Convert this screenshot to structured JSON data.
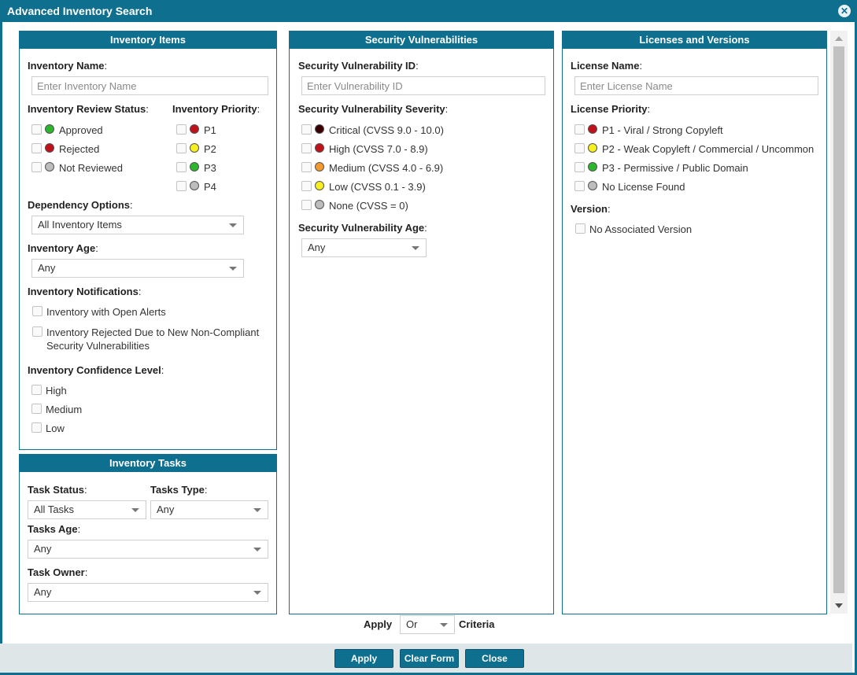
{
  "dialog": {
    "title": "Advanced Inventory Search"
  },
  "inventory_items": {
    "header": "Inventory Items",
    "name_label": "Inventory Name",
    "name_placeholder": "Enter Inventory Name",
    "review_status_label": "Inventory Review Status",
    "review_status": [
      {
        "label": "Approved",
        "color": "#2db52d"
      },
      {
        "label": "Rejected",
        "color": "#c0101a"
      },
      {
        "label": "Not Reviewed",
        "color": "#bdbdbd"
      }
    ],
    "priority_label": "Inventory Priority",
    "priorities": [
      {
        "label": "P1",
        "color": "#c0101a"
      },
      {
        "label": "P2",
        "color": "#f7f01e"
      },
      {
        "label": "P3",
        "color": "#2db52d"
      },
      {
        "label": "P4",
        "color": "#bdbdbd"
      }
    ],
    "dependency_label": "Dependency Options",
    "dependency_value": "All Inventory Items",
    "age_label": "Inventory Age",
    "age_value": "Any",
    "notifications_label": "Inventory Notifications",
    "notifications": [
      "Inventory with Open Alerts",
      "Inventory Rejected Due to New Non-Compliant",
      "Security Vulnerabilities"
    ],
    "confidence_label": "Inventory Confidence Level",
    "confidence": [
      "High",
      "Medium",
      "Low"
    ]
  },
  "inventory_tasks": {
    "header": "Inventory Tasks",
    "status_label": "Task Status",
    "status_value": "All Tasks",
    "type_label": "Tasks Type",
    "type_value": "Any",
    "age_label": "Tasks Age",
    "age_value": "Any",
    "owner_label": "Task Owner",
    "owner_value": "Any"
  },
  "security": {
    "header": "Security Vulnerabilities",
    "id_label": "Security Vulnerability ID",
    "id_placeholder": "Enter Vulnerability ID",
    "severity_label": "Security Vulnerability Severity",
    "severities": [
      {
        "label": "Critical (CVSS 9.0 - 10.0)",
        "color": "#3a0000"
      },
      {
        "label": "High (CVSS 7.0 - 8.9)",
        "color": "#c0101a"
      },
      {
        "label": "Medium (CVSS 4.0 - 6.9)",
        "color": "#f29a2e"
      },
      {
        "label": "Low (CVSS 0.1 - 3.9)",
        "color": "#f7f01e"
      },
      {
        "label": "None (CVSS = 0)",
        "color": "#bdbdbd"
      }
    ],
    "age_label": "Security Vulnerability Age",
    "age_value": "Any"
  },
  "licenses": {
    "header": "Licenses and Versions",
    "name_label": "License Name",
    "name_placeholder": "Enter License Name",
    "priority_label": "License Priority",
    "priorities": [
      {
        "label": "P1 - Viral / Strong Copyleft",
        "color": "#c0101a"
      },
      {
        "label": "P2 - Weak Copyleft / Commercial / Uncommon",
        "color": "#f7f01e"
      },
      {
        "label": "P3 - Permissive / Public Domain",
        "color": "#2db52d"
      },
      {
        "label": "No License Found",
        "color": "#bdbdbd"
      }
    ],
    "version_label": "Version",
    "version_options": [
      "No Associated Version"
    ]
  },
  "criteria": {
    "apply_label": "Apply",
    "value": "Or",
    "criteria_label": "Criteria"
  },
  "buttons": {
    "apply": "Apply",
    "clear": "Clear Form",
    "close": "Close"
  },
  "colon": ":"
}
